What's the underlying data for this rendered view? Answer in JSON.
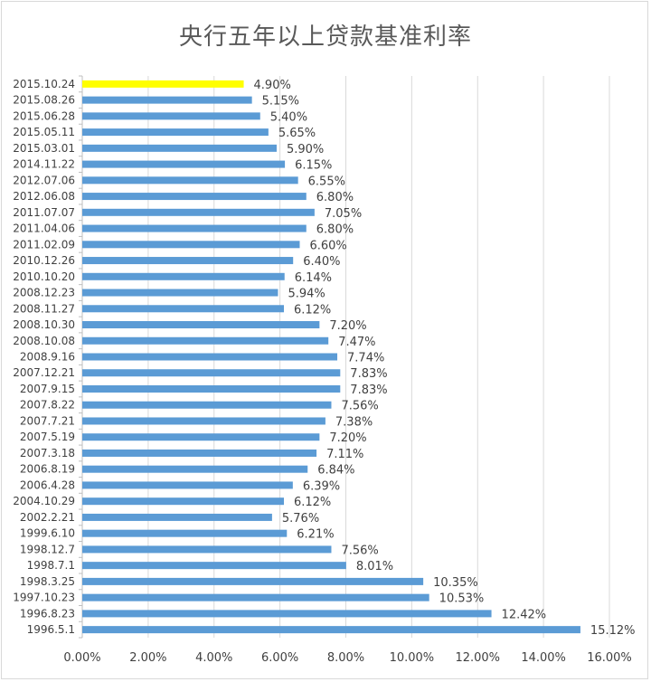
{
  "chart_data": {
    "type": "bar",
    "orientation": "horizontal",
    "title": "央行五年以上贷款基准利率",
    "xlabel": "",
    "ylabel": "",
    "xlim": [
      0,
      16
    ],
    "x_ticks": [
      "0.00%",
      "2.00%",
      "4.00%",
      "6.00%",
      "8.00%",
      "10.00%",
      "12.00%",
      "14.00%",
      "16.00%"
    ],
    "grid": "vertical",
    "colors": {
      "default": "#5b9bd5",
      "highlight": "#ffff00"
    },
    "categories": [
      "2015.10.24",
      "2015.08.26",
      "2015.06.28",
      "2015.05.11",
      "2015.03.01",
      "2014.11.22",
      "2012.07.06",
      "2012.06.08",
      "2011.07.07",
      "2011.04.06",
      "2011.02.09",
      "2010.12.26",
      "2010.10.20",
      "2008.12.23",
      "2008.11.27",
      "2008.10.30",
      "2008.10.08",
      "2008.9.16",
      "2007.12.21",
      "2007.9.15",
      "2007.8.22",
      "2007.7.21",
      "2007.5.19",
      "2007.3.18",
      "2006.8.19",
      "2006.4.28",
      "2004.10.29",
      "2002.2.21",
      "1999.6.10",
      "1998.12.7",
      "1998.7.1",
      "1998.3.25",
      "1997.10.23",
      "1996.8.23",
      "1996.5.1"
    ],
    "values": [
      4.9,
      5.15,
      5.4,
      5.65,
      5.9,
      6.15,
      6.55,
      6.8,
      7.05,
      6.8,
      6.6,
      6.4,
      6.14,
      5.94,
      6.12,
      7.2,
      7.47,
      7.74,
      7.83,
      7.83,
      7.56,
      7.38,
      7.2,
      7.11,
      6.84,
      6.39,
      6.12,
      5.76,
      6.21,
      7.56,
      8.01,
      10.35,
      10.53,
      12.42,
      15.12
    ],
    "data_labels": [
      "4.90%",
      "5.15%",
      "5.40%",
      "5.65%",
      "5.90%",
      "6.15%",
      "6.55%",
      "6.80%",
      "7.05%",
      "6.80%",
      "6.60%",
      "6.40%",
      "6.14%",
      "5.94%",
      "6.12%",
      "7.20%",
      "7.47%",
      "7.74%",
      "7.83%",
      "7.83%",
      "7.56%",
      "7.38%",
      "7.20%",
      "7.11%",
      "6.84%",
      "6.39%",
      "6.12%",
      "5.76%",
      "6.21%",
      "7.56%",
      "8.01%",
      "10.35%",
      "10.53%",
      "12.42%",
      "15.12%"
    ],
    "highlight_index": 0
  }
}
